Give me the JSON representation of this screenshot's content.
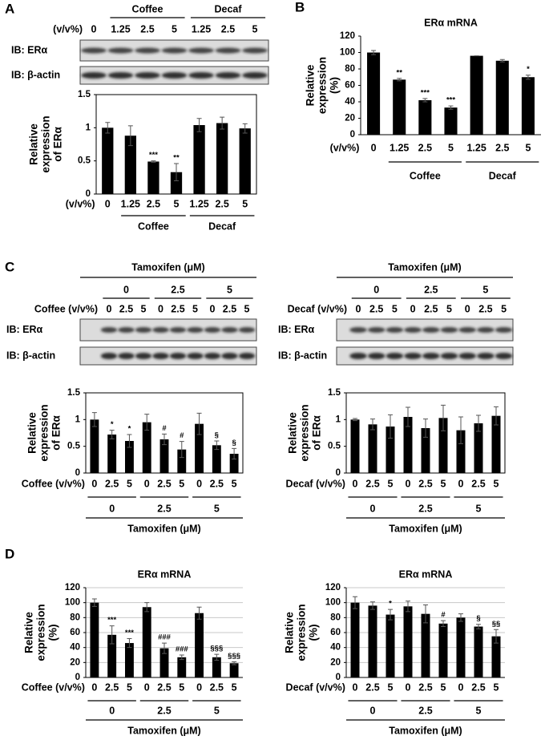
{
  "panels": [
    "A",
    "B",
    "C",
    "D"
  ],
  "blots": [
    {
      "groups": [
        "Coffee",
        "Decaf"
      ],
      "lane_label": "(v/v%)",
      "lanes": [
        "0",
        "1.25",
        "2.5",
        "5",
        "1.25",
        "2.5",
        "5"
      ],
      "rows": [
        "IB: ERα",
        "IB: β-actin"
      ]
    },
    {
      "title": "Tamoxifen (μM)",
      "groups": [
        "0",
        "2.5",
        "5"
      ],
      "lane_label": "Coffee (v/v%)",
      "lanes": [
        "0",
        "2.5",
        "5",
        "0",
        "2.5",
        "5",
        "0",
        "2.5",
        "5"
      ],
      "rows": [
        "IB: ERα",
        "IB: β-actin"
      ]
    },
    {
      "title": "Tamoxifen (μM)",
      "groups": [
        "0",
        "2.5",
        "5"
      ],
      "lane_label": "Decaf (v/v%)",
      "lanes": [
        "0",
        "2.5",
        "5",
        "0",
        "2.5",
        "5",
        "0",
        "2.5",
        "5"
      ],
      "rows": [
        "IB: ERα",
        "IB: β-actin"
      ]
    }
  ],
  "chart_data": [
    {
      "type": "bar",
      "ylabel": [
        "Relative",
        "expression",
        "of ERα"
      ],
      "x_label": "(v/v%)",
      "categories": [
        "0",
        "1.25",
        "2.5",
        "5",
        "1.25",
        "2.5",
        "5"
      ],
      "values": [
        1.0,
        0.88,
        0.49,
        0.33,
        1.04,
        1.07,
        0.99
      ],
      "errors": [
        0.08,
        0.15,
        0.01,
        0.13,
        0.1,
        0.09,
        0.07
      ],
      "annotations": [
        null,
        null,
        "***",
        "**",
        null,
        null,
        null
      ],
      "groups": [
        "Coffee",
        "Decaf"
      ],
      "color": "#000000",
      "ylim": [
        0,
        1.5
      ],
      "yticks": [
        0,
        0.5,
        1,
        1.5
      ],
      "grid": false
    },
    {
      "type": "bar",
      "title": "ERα mRNA",
      "ylabel": [
        "Relative",
        "expression",
        "(%)"
      ],
      "x_label": "(v/v%)",
      "categories": [
        "0",
        "1.25",
        "2.5",
        "5",
        "1.25",
        "2.5",
        "5"
      ],
      "values": [
        100,
        67,
        42,
        33,
        96,
        90,
        70
      ],
      "errors": [
        2.5,
        1.5,
        2,
        2,
        0,
        1.5,
        2.5
      ],
      "annotations": [
        null,
        "**",
        "***",
        "***",
        null,
        null,
        "*"
      ],
      "groups": [
        "Coffee",
        "Decaf"
      ],
      "color": "#000000",
      "ylim": [
        0,
        120
      ],
      "yticks": [
        0,
        20,
        40,
        60,
        80,
        100,
        120
      ],
      "grid": false
    },
    {
      "type": "bar",
      "ylabel": [
        "Relative",
        "expression",
        "of ERα"
      ],
      "x_label": "Coffee (v/v%)",
      "categories": [
        "0",
        "2.5",
        "5",
        "0",
        "2.5",
        "5",
        "0",
        "2.5",
        "5"
      ],
      "values": [
        1.0,
        0.72,
        0.6,
        0.95,
        0.63,
        0.44,
        0.92,
        0.52,
        0.36
      ],
      "errors": [
        0.13,
        0.08,
        0.12,
        0.15,
        0.1,
        0.15,
        0.2,
        0.08,
        0.1
      ],
      "annotations": [
        null,
        "*",
        "*",
        null,
        "#",
        "#",
        null,
        "§",
        "§"
      ],
      "groups": [
        "0",
        "2.5",
        "5"
      ],
      "group_title": "Tamoxifen (μM)",
      "color": "#000000",
      "ylim": [
        0,
        1.5
      ],
      "yticks": [
        0,
        0.5,
        1,
        1.5
      ],
      "grid": false
    },
    {
      "type": "bar",
      "ylabel": [
        "Relative",
        "expression",
        "of ERα"
      ],
      "x_label": "Decaf (v/v%)",
      "categories": [
        "0",
        "2.5",
        "5",
        "0",
        "2.5",
        "5",
        "0",
        "2.5",
        "5"
      ],
      "values": [
        1.0,
        0.91,
        0.87,
        1.05,
        0.84,
        1.03,
        0.8,
        0.93,
        1.07
      ],
      "errors": [
        0.02,
        0.1,
        0.22,
        0.18,
        0.17,
        0.24,
        0.25,
        0.15,
        0.17
      ],
      "annotations": [
        null,
        null,
        null,
        null,
        null,
        null,
        null,
        null,
        null
      ],
      "groups": [
        "0",
        "2.5",
        "5"
      ],
      "group_title": "Tamoxifen (μM)",
      "color": "#000000",
      "ylim": [
        0,
        1.5
      ],
      "yticks": [
        0,
        0.5,
        1,
        1.5
      ],
      "grid": false
    },
    {
      "type": "bar",
      "title": "ERα mRNA",
      "ylabel": [
        "Relative",
        "expression",
        "(%)"
      ],
      "x_label": "Coffee (v/v%)",
      "categories": [
        "0",
        "2.5",
        "5",
        "0",
        "2.5",
        "5",
        "0",
        "2.5",
        "5"
      ],
      "values": [
        100,
        57,
        46,
        94,
        39,
        27,
        86,
        27,
        19
      ],
      "errors": [
        5,
        12,
        6,
        6,
        7,
        3,
        8,
        4,
        2
      ],
      "annotations": [
        null,
        "***",
        "***",
        null,
        "###",
        "###",
        null,
        "§§§",
        "§§§"
      ],
      "groups": [
        "0",
        "2.5",
        "5"
      ],
      "group_title": "Tamoxifen (μM)",
      "color": "#000000",
      "ylim": [
        0,
        120
      ],
      "yticks": [
        0,
        20,
        40,
        60,
        80,
        100,
        120
      ],
      "grid": true
    },
    {
      "type": "bar",
      "title": "ERα mRNA",
      "ylabel": [
        "Relative",
        "expression",
        "(%)"
      ],
      "x_label": "Decaf (v/v%)",
      "categories": [
        "0",
        "2.5",
        "5",
        "0",
        "2.5",
        "5",
        "0",
        "2.5",
        "5"
      ],
      "values": [
        100,
        96,
        84,
        95,
        85,
        72,
        80,
        68,
        55
      ],
      "errors": [
        8,
        5,
        7,
        7,
        12,
        4,
        5,
        3,
        9
      ],
      "annotations": [
        null,
        null,
        "*",
        null,
        null,
        "#",
        null,
        "§",
        "§§"
      ],
      "groups": [
        "0",
        "2.5",
        "5"
      ],
      "group_title": "Tamoxifen (μM)",
      "color": "#000000",
      "ylim": [
        0,
        120
      ],
      "yticks": [
        0,
        20,
        40,
        60,
        80,
        100,
        120
      ],
      "grid": true
    }
  ]
}
